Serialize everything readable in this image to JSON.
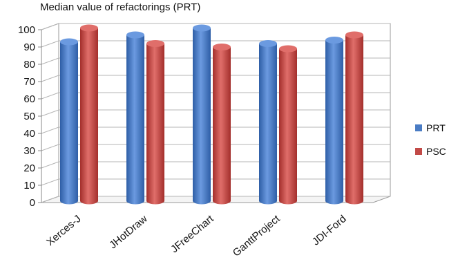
{
  "chart_data": {
    "type": "bar",
    "title": "Median value of refactorings (PRT)",
    "categories": [
      "Xerces-J",
      "JHotDraw",
      "JFreeChart",
      "GanttProject",
      "JDI-Ford"
    ],
    "series": [
      {
        "name": "PRT",
        "values": [
          92,
          96,
          100,
          91,
          93
        ],
        "color": "#4a7cc4"
      },
      {
        "name": "PSC",
        "values": [
          100,
          91,
          89,
          88,
          96
        ],
        "color": "#c24a47"
      }
    ],
    "yticks": [
      0,
      10,
      20,
      30,
      40,
      50,
      60,
      70,
      80,
      90,
      100
    ],
    "ylim": [
      0,
      100
    ],
    "legend_position": "right",
    "grid": true,
    "three_d": true
  }
}
